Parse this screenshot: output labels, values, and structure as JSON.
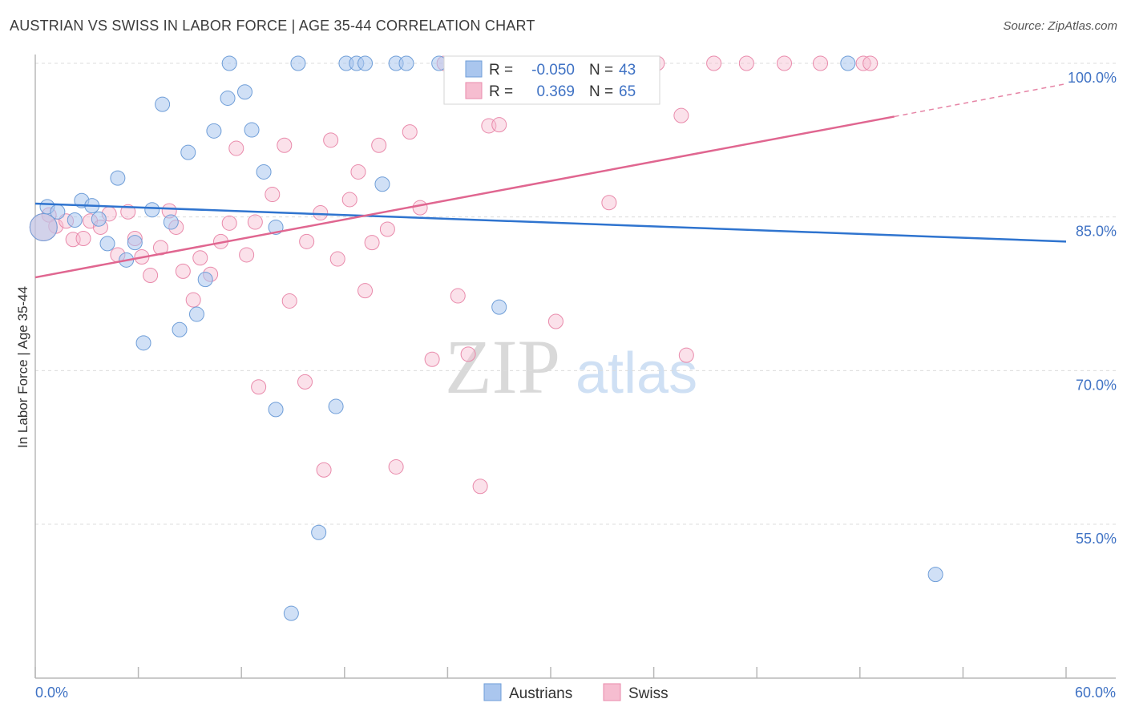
{
  "title": "AUSTRIAN VS SWISS IN LABOR FORCE | AGE 35-44 CORRELATION CHART",
  "source": "Source: ZipAtlas.com",
  "watermark": {
    "zip": "ZIP",
    "atlas": "atlas"
  },
  "colors": {
    "blue_fill": "#aac6ee",
    "blue_stroke": "#6f9ed8",
    "blue_line": "#2f74cf",
    "pink_fill": "#f6bdd0",
    "pink_stroke": "#e98aab",
    "pink_line": "#e06690",
    "grid": "#dcdcdc",
    "axis_text": "#3f72c4"
  },
  "legend": {
    "r_label": "R =",
    "n_label": "N =",
    "austrians": {
      "r": "-0.050",
      "n": "43"
    },
    "swiss": {
      "r": "0.369",
      "n": "65"
    }
  },
  "bottom_legend": {
    "austrians": "Austrians",
    "swiss": "Swiss"
  },
  "chart_data": {
    "type": "scatter",
    "title": "AUSTRIAN VS SWISS IN LABOR FORCE | AGE 35-44 CORRELATION CHART",
    "xlabel": "",
    "ylabel": "In Labor Force | Age 35-44",
    "xlim": [
      0,
      60
    ],
    "ylim": [
      42,
      102
    ],
    "x_tick_labels": [
      "0.0%",
      "60.0%"
    ],
    "y_ticks": [
      55,
      70,
      85,
      100
    ],
    "y_tick_labels": [
      "55.0%",
      "70.0%",
      "85.0%",
      "100.0%"
    ],
    "grid": true,
    "series": [
      {
        "name": "Austrians",
        "r": -0.05,
        "n": 43,
        "trend": {
          "x": [
            0,
            60
          ],
          "y": [
            86.3,
            82.6
          ]
        },
        "points": [
          [
            0.7,
            86.0
          ],
          [
            1.3,
            85.5
          ],
          [
            2.3,
            84.7
          ],
          [
            2.7,
            86.6
          ],
          [
            3.3,
            86.1
          ],
          [
            3.7,
            84.8
          ],
          [
            4.2,
            82.4
          ],
          [
            4.8,
            88.8
          ],
          [
            5.3,
            80.8
          ],
          [
            5.8,
            82.5
          ],
          [
            6.3,
            72.7
          ],
          [
            6.8,
            85.7
          ],
          [
            7.4,
            96.0
          ],
          [
            7.9,
            84.5
          ],
          [
            8.4,
            74.0
          ],
          [
            8.9,
            91.3
          ],
          [
            9.4,
            75.5
          ],
          [
            9.9,
            78.9
          ],
          [
            10.4,
            93.4
          ],
          [
            11.2,
            96.6
          ],
          [
            11.3,
            100.0
          ],
          [
            12.2,
            97.2
          ],
          [
            12.6,
            93.5
          ],
          [
            13.3,
            89.4
          ],
          [
            14.0,
            84.0
          ],
          [
            14.0,
            66.2
          ],
          [
            14.9,
            46.3
          ],
          [
            15.3,
            100.0
          ],
          [
            16.5,
            54.2
          ],
          [
            17.5,
            66.5
          ],
          [
            18.1,
            100.0
          ],
          [
            18.7,
            100.0
          ],
          [
            19.2,
            100.0
          ],
          [
            20.2,
            88.2
          ],
          [
            21.0,
            100.0
          ],
          [
            21.6,
            100.0
          ],
          [
            23.5,
            100.0
          ],
          [
            24.8,
            100.0
          ],
          [
            27.0,
            76.2
          ],
          [
            47.3,
            100.0
          ],
          [
            52.4,
            50.1
          ]
        ],
        "large_point": [
          0.2,
          84.0
        ]
      },
      {
        "name": "Swiss",
        "r": 0.369,
        "n": 65,
        "trend": {
          "x": [
            0,
            50
          ],
          "y": [
            79.1,
            94.8
          ]
        },
        "trend_dashed": {
          "x": [
            50,
            60
          ],
          "y": [
            94.8,
            98.0
          ]
        },
        "points": [
          [
            0.8,
            85.2
          ],
          [
            1.2,
            84.1
          ],
          [
            1.8,
            84.6
          ],
          [
            2.2,
            82.8
          ],
          [
            2.8,
            82.9
          ],
          [
            3.2,
            84.6
          ],
          [
            3.8,
            84.0
          ],
          [
            4.3,
            85.3
          ],
          [
            4.8,
            81.3
          ],
          [
            5.4,
            85.5
          ],
          [
            5.8,
            82.9
          ],
          [
            6.2,
            81.1
          ],
          [
            6.7,
            79.3
          ],
          [
            7.3,
            82.0
          ],
          [
            7.8,
            85.6
          ],
          [
            8.2,
            84.0
          ],
          [
            8.6,
            79.7
          ],
          [
            9.2,
            76.9
          ],
          [
            9.6,
            81.0
          ],
          [
            10.2,
            79.4
          ],
          [
            10.8,
            82.6
          ],
          [
            11.3,
            84.4
          ],
          [
            11.7,
            91.7
          ],
          [
            12.3,
            81.3
          ],
          [
            12.8,
            84.5
          ],
          [
            13.0,
            68.4
          ],
          [
            13.8,
            87.2
          ],
          [
            14.5,
            92.0
          ],
          [
            14.8,
            76.8
          ],
          [
            15.7,
            68.9
          ],
          [
            15.8,
            82.6
          ],
          [
            16.6,
            85.4
          ],
          [
            16.8,
            60.3
          ],
          [
            17.2,
            92.5
          ],
          [
            17.6,
            80.9
          ],
          [
            18.3,
            86.7
          ],
          [
            18.8,
            89.4
          ],
          [
            19.2,
            77.8
          ],
          [
            19.6,
            82.5
          ],
          [
            20.0,
            92.0
          ],
          [
            20.5,
            83.8
          ],
          [
            21.0,
            60.6
          ],
          [
            21.8,
            93.3
          ],
          [
            22.4,
            85.9
          ],
          [
            23.1,
            71.1
          ],
          [
            23.8,
            100.0
          ],
          [
            24.6,
            77.3
          ],
          [
            25.2,
            71.6
          ],
          [
            25.5,
            100.0
          ],
          [
            25.9,
            58.7
          ],
          [
            26.4,
            93.9
          ],
          [
            27.0,
            94.0
          ],
          [
            28.2,
            100.0
          ],
          [
            30.3,
            74.8
          ],
          [
            33.4,
            86.4
          ],
          [
            34.7,
            100.0
          ],
          [
            36.2,
            100.0
          ],
          [
            37.6,
            94.9
          ],
          [
            37.9,
            71.5
          ],
          [
            39.5,
            100.0
          ],
          [
            41.4,
            100.0
          ],
          [
            43.6,
            100.0
          ],
          [
            45.7,
            100.0
          ],
          [
            48.2,
            100.0
          ],
          [
            48.6,
            100.0
          ]
        ],
        "large_point": [
          0.2,
          84.0
        ]
      }
    ]
  }
}
